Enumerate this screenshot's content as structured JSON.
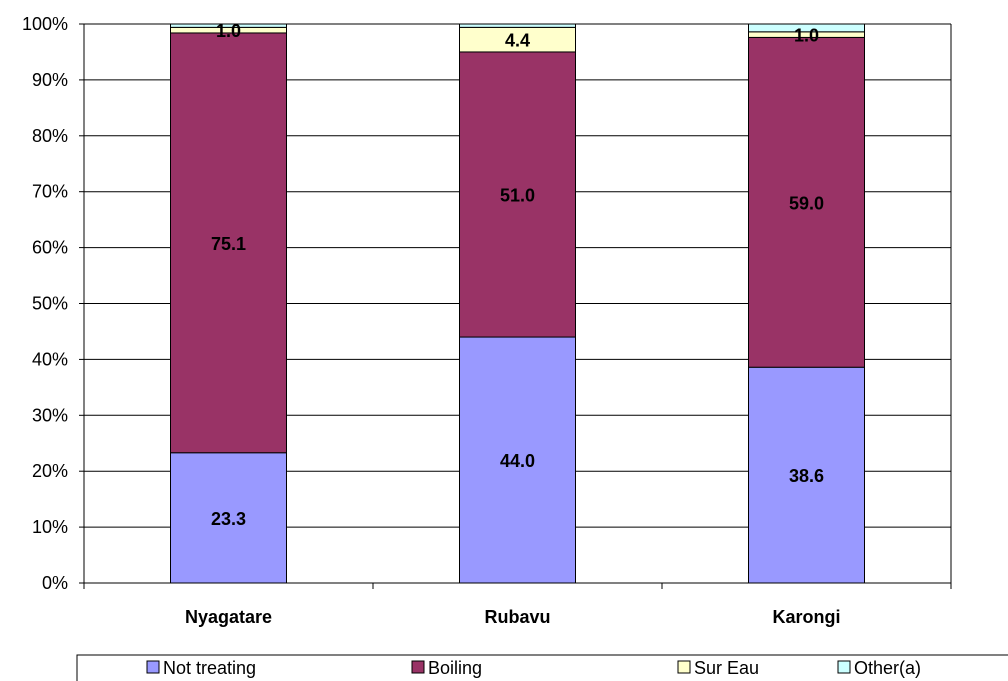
{
  "chart_data": {
    "type": "bar",
    "stacked": true,
    "percent": true,
    "categories": [
      "Nyagatare",
      "Rubavu",
      "Karongi"
    ],
    "ylim": [
      0,
      100
    ],
    "yticks": [
      "0%",
      "10%",
      "20%",
      "30%",
      "40%",
      "50%",
      "60%",
      "70%",
      "80%",
      "90%",
      "100%"
    ],
    "grid": true,
    "legend_position": "bottom",
    "series": [
      {
        "name": "Not treating",
        "color": "#9999ff",
        "values": [
          23.3,
          44.0,
          38.6
        ],
        "labels": [
          "23.3",
          "44.0",
          "38.6"
        ]
      },
      {
        "name": "Boiling",
        "color": "#993366",
        "values": [
          75.1,
          51.0,
          59.0
        ],
        "labels": [
          "75.1",
          "51.0",
          "59.0"
        ]
      },
      {
        "name": "Sur Eau",
        "color": "#ffffcc",
        "values": [
          1.0,
          4.4,
          1.0
        ],
        "labels": [
          "1.0",
          "4.4",
          "1.0"
        ]
      },
      {
        "name": "Other(a)",
        "color": "#ccffff",
        "values": [
          0.6,
          0.6,
          1.4
        ],
        "labels": [
          "",
          "",
          ""
        ]
      }
    ]
  }
}
